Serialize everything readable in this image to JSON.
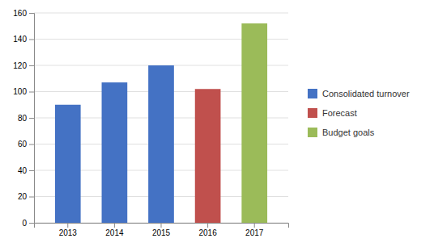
{
  "chart_data": {
    "type": "bar",
    "categories": [
      "2013",
      "2014",
      "2015",
      "2016",
      "2017"
    ],
    "series": [
      {
        "name": "Consolidated turnover",
        "color": "#4472C4",
        "values": [
          90,
          107,
          120,
          null,
          null
        ]
      },
      {
        "name": "Forecast",
        "color": "#C0504D",
        "values": [
          null,
          null,
          null,
          102,
          null
        ]
      },
      {
        "name": "Budget goals",
        "color": "#9BBB59",
        "values": [
          null,
          null,
          null,
          null,
          152
        ]
      }
    ],
    "stacked": true,
    "ylim": [
      0,
      160
    ],
    "yticks": [
      0,
      20,
      40,
      60,
      80,
      100,
      120,
      140,
      160
    ],
    "grid": true,
    "legend": "right"
  }
}
